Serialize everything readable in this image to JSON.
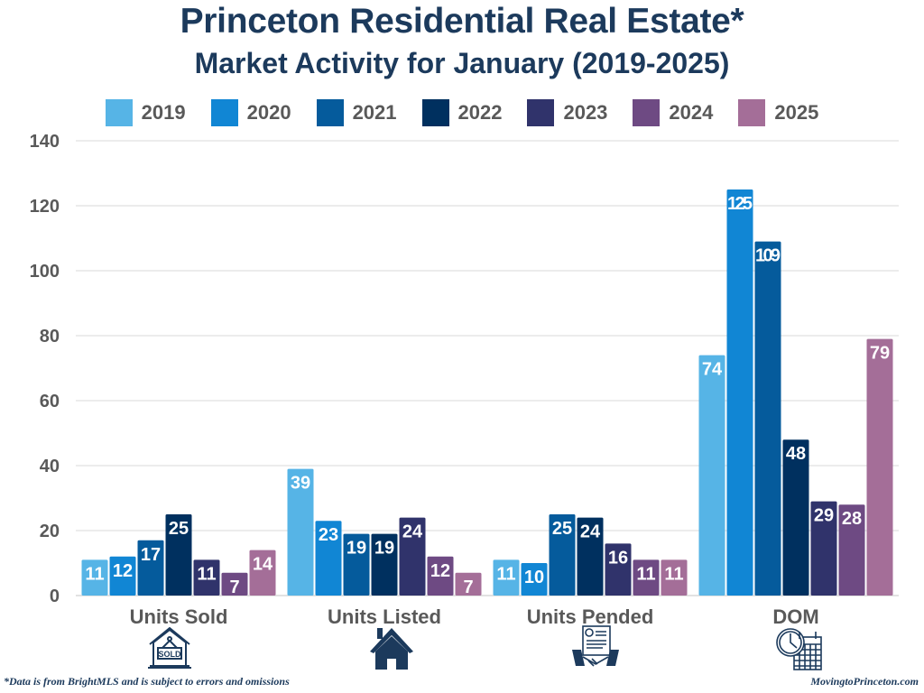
{
  "chart_data": {
    "type": "bar",
    "title": "Princeton Residential Real Estate*",
    "subtitle": "Market Activity for January (2019-2025)",
    "categories": [
      "Units Sold",
      "Units Listed",
      "Units Pended",
      "DOM"
    ],
    "series": [
      {
        "name": "2019",
        "color": "#56b4e6",
        "values": [
          11,
          39,
          11,
          74
        ]
      },
      {
        "name": "2020",
        "color": "#1186d4",
        "values": [
          12,
          23,
          10,
          125
        ]
      },
      {
        "name": "2021",
        "color": "#055b9c",
        "values": [
          17,
          19,
          25,
          109
        ]
      },
      {
        "name": "2022",
        "color": "#00305f",
        "values": [
          25,
          19,
          24,
          48
        ]
      },
      {
        "name": "2023",
        "color": "#30336b",
        "values": [
          11,
          24,
          16,
          29
        ]
      },
      {
        "name": "2024",
        "color": "#6e4a83",
        "values": [
          7,
          12,
          11,
          28
        ]
      },
      {
        "name": "2025",
        "color": "#a46e98",
        "values": [
          14,
          7,
          11,
          79
        ]
      }
    ],
    "xlabel": "",
    "ylabel": "",
    "ylim": [
      0,
      140
    ],
    "yticks": [
      0,
      20,
      40,
      60,
      80,
      100,
      120,
      140
    ],
    "grid": true,
    "legend": "top",
    "data_labels": true
  },
  "icons": [
    "sold-sign-icon",
    "house-icon",
    "contract-handshake-icon",
    "clock-calendar-icon"
  ],
  "footnote": "*Data is from BrightMLS and is subject to errors and omissions",
  "site": "MovingtoPrinceton.com"
}
